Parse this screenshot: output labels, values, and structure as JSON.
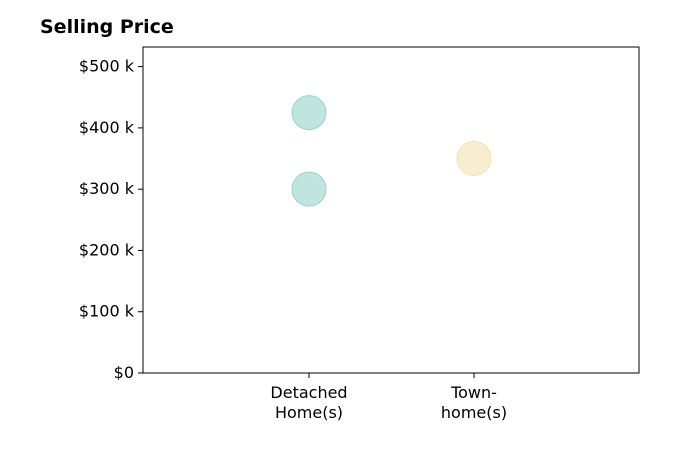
{
  "chart_data": {
    "type": "scatter",
    "title": "Selling Price",
    "xlabel": "",
    "ylabel": "",
    "categories": [
      [
        "Detached",
        "Home(s)"
      ],
      [
        "Town-",
        "home(s)"
      ]
    ],
    "yticks": [
      0,
      100,
      200,
      300,
      400,
      500
    ],
    "ytick_labels": [
      "$0",
      "$100 k",
      "$200 k",
      "$300 k",
      "$400 k",
      "$500 k"
    ],
    "ylim": [
      0,
      532
    ],
    "grid": false,
    "points": [
      {
        "category": 0,
        "y": 425,
        "color": "#8ccfc7"
      },
      {
        "category": 0,
        "y": 300,
        "color": "#8ccfc7"
      },
      {
        "category": 1,
        "y": 350,
        "color": "#f3deaa"
      }
    ]
  }
}
